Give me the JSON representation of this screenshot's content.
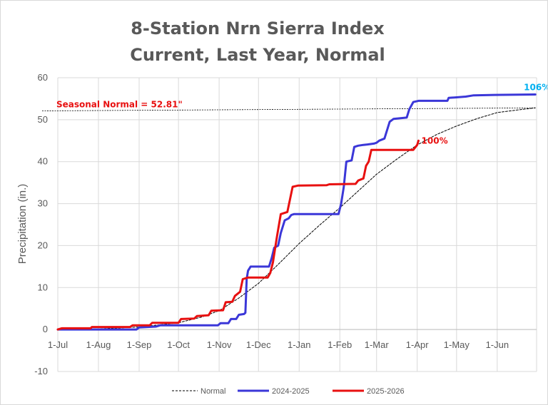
{
  "chart_data": {
    "type": "line",
    "title": [
      "8-Station Nrn Sierra Index",
      "Current, Last Year, Normal"
    ],
    "ylabel": "Precipitation (in.)",
    "ylim": [
      -10,
      60
    ],
    "yticks": [
      "-10",
      "0",
      "10",
      "20",
      "30",
      "40",
      "50",
      "60"
    ],
    "xlim": [
      0,
      365
    ],
    "xticks": [
      {
        "label": "1-Jul",
        "day": 0
      },
      {
        "label": "1-Aug",
        "day": 31
      },
      {
        "label": "1-Sep",
        "day": 62
      },
      {
        "label": "1-Oct",
        "day": 92
      },
      {
        "label": "1-Nov",
        "day": 123
      },
      {
        "label": "1-Dec",
        "day": 153
      },
      {
        "label": "1-Jan",
        "day": 184
      },
      {
        "label": "1-Feb",
        "day": 215
      },
      {
        "label": "1-Mar",
        "day": 243
      },
      {
        "label": "1-Apr",
        "day": 274
      },
      {
        "label": "1-May",
        "day": 304
      },
      {
        "label": "1-Jun",
        "day": 335
      }
    ],
    "grid": true,
    "legend_position": "bottom",
    "series": [
      {
        "name": "Normal",
        "color": "#000000",
        "dashed": true,
        "width": 1,
        "points": [
          [
            0,
            0
          ],
          [
            31,
            0.15
          ],
          [
            62,
            0.6
          ],
          [
            92,
            1.6
          ],
          [
            110,
            3
          ],
          [
            123,
            4.5
          ],
          [
            138,
            7.5
          ],
          [
            153,
            11
          ],
          [
            168,
            15.5
          ],
          [
            184,
            20.5
          ],
          [
            200,
            25
          ],
          [
            215,
            29
          ],
          [
            229,
            33
          ],
          [
            243,
            37
          ],
          [
            258,
            40.5
          ],
          [
            274,
            44
          ],
          [
            289,
            46.5
          ],
          [
            304,
            48.5
          ],
          [
            320,
            50.3
          ],
          [
            335,
            51.7
          ],
          [
            350,
            52.3
          ],
          [
            364,
            52.81
          ]
        ]
      },
      {
        "name": "2024-2025",
        "color": "#3b37d8",
        "dashed": false,
        "width": 3,
        "points": [
          [
            0,
            0
          ],
          [
            60,
            0
          ],
          [
            62,
            0.5
          ],
          [
            75,
            0.7
          ],
          [
            78,
            1.0
          ],
          [
            122,
            1.0
          ],
          [
            124,
            1.5
          ],
          [
            130,
            1.5
          ],
          [
            132,
            2.5
          ],
          [
            136,
            2.5
          ],
          [
            138,
            3.5
          ],
          [
            142,
            3.7
          ],
          [
            143,
            4
          ],
          [
            144,
            12
          ],
          [
            145,
            14
          ],
          [
            147,
            15
          ],
          [
            161,
            15
          ],
          [
            163,
            17
          ],
          [
            165,
            19.5
          ],
          [
            168,
            20
          ],
          [
            170,
            23
          ],
          [
            173,
            26
          ],
          [
            176,
            26.5
          ],
          [
            178,
            27.3
          ],
          [
            180,
            27.5
          ],
          [
            214,
            27.5
          ],
          [
            216,
            30
          ],
          [
            218,
            34
          ],
          [
            220,
            40
          ],
          [
            224,
            40.3
          ],
          [
            226,
            43.5
          ],
          [
            229,
            43.8
          ],
          [
            233,
            44
          ],
          [
            236,
            44.1
          ],
          [
            241,
            44.3
          ],
          [
            243,
            44.5
          ],
          [
            245,
            45
          ],
          [
            249,
            45.5
          ],
          [
            253,
            49.5
          ],
          [
            256,
            50.2
          ],
          [
            266,
            50.5
          ],
          [
            268,
            52.5
          ],
          [
            271,
            54.2
          ],
          [
            275,
            54.5
          ],
          [
            297,
            54.5
          ],
          [
            298,
            55.2
          ],
          [
            311,
            55.5
          ],
          [
            317,
            55.8
          ],
          [
            333,
            55.9
          ],
          [
            364,
            56
          ]
        ]
      },
      {
        "name": "2025-2026",
        "color": "#e81010",
        "dashed": false,
        "width": 3,
        "points": [
          [
            0,
            0
          ],
          [
            3,
            0.3
          ],
          [
            25,
            0.3
          ],
          [
            26,
            0.6
          ],
          [
            55,
            0.6
          ],
          [
            57,
            1.0
          ],
          [
            70,
            1.0
          ],
          [
            72,
            1.6
          ],
          [
            92,
            1.6
          ],
          [
            94,
            2.5
          ],
          [
            104,
            2.6
          ],
          [
            106,
            3.2
          ],
          [
            115,
            3.4
          ],
          [
            117,
            4.5
          ],
          [
            126,
            4.6
          ],
          [
            128,
            6.5
          ],
          [
            133,
            6.6
          ],
          [
            135,
            8
          ],
          [
            139,
            9
          ],
          [
            141,
            12
          ],
          [
            145,
            12.4
          ],
          [
            160,
            12.4
          ],
          [
            162,
            13.5
          ],
          [
            164,
            16
          ],
          [
            167,
            22
          ],
          [
            170,
            27.5
          ],
          [
            175,
            28
          ],
          [
            177,
            31
          ],
          [
            179,
            34
          ],
          [
            183,
            34.3
          ],
          [
            205,
            34.4
          ],
          [
            207,
            34.6
          ],
          [
            227,
            34.7
          ],
          [
            229,
            35.5
          ],
          [
            233,
            36
          ],
          [
            235,
            39
          ],
          [
            237,
            40
          ],
          [
            239,
            42.8
          ],
          [
            271,
            42.8
          ],
          [
            274,
            44
          ],
          [
            275,
            45
          ]
        ]
      }
    ],
    "annotations": [
      {
        "text": "106%",
        "color": "#00b0f0",
        "x": 364,
        "y": 56
      },
      {
        "text": "100%",
        "color": "#e81010",
        "x": 275,
        "y": 45
      },
      {
        "text": "Seasonal Normal = 52.81\"",
        "color": "#e81010",
        "x": 0,
        "y": 52.81
      }
    ],
    "reference_line": {
      "y_start": 52.1,
      "y_end": 52.81,
      "color": "#000000",
      "dashed": true
    }
  }
}
